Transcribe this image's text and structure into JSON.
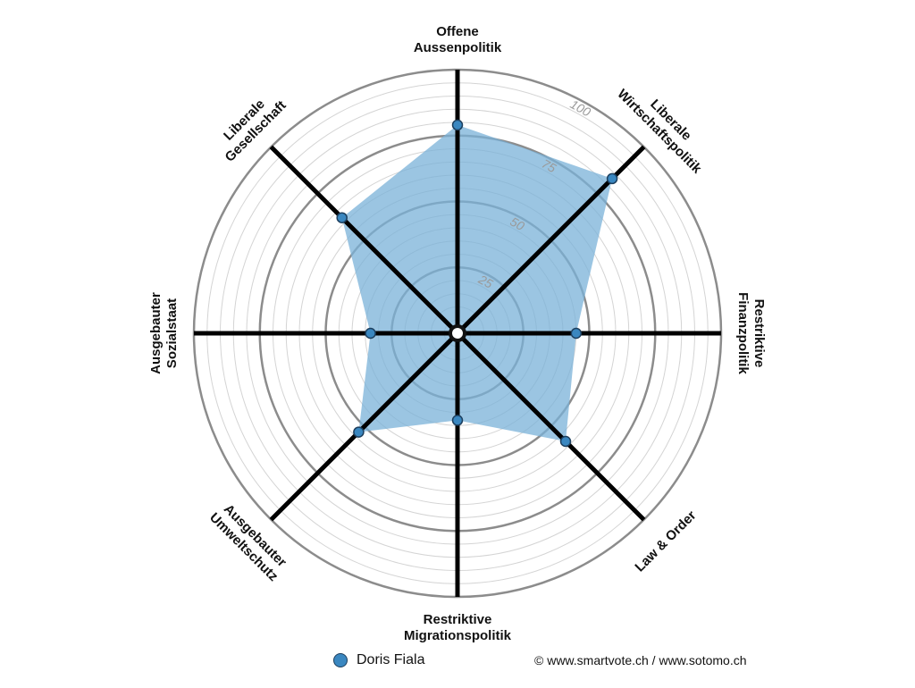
{
  "chart_data": {
    "type": "radar",
    "axes": [
      {
        "name": "Offene Aussenpolitik",
        "lines": [
          "Offene",
          "Aussenpolitik"
        ]
      },
      {
        "name": "Liberale Wirtschaftspolitik",
        "lines": [
          "Liberale",
          "Wirtschaftspolitik"
        ]
      },
      {
        "name": "Restriktive Finanzpolitik",
        "lines": [
          "Restriktive",
          "Finanzpolitik"
        ]
      },
      {
        "name": "Law & Order",
        "lines": [
          "Law & Order"
        ]
      },
      {
        "name": "Restriktive Migrationspolitik",
        "lines": [
          "Restriktive",
          "Migrationspolitik"
        ]
      },
      {
        "name": "Ausgebauter Umweltschutz",
        "lines": [
          "Ausgebauter",
          "Umweltschutz"
        ]
      },
      {
        "name": "Ausgebauter Sozialstaat",
        "lines": [
          "Ausgebauter",
          "Sozialstaat"
        ]
      },
      {
        "name": "Liberale Gesellschaft",
        "lines": [
          "Liberale",
          "Gesellschaft"
        ]
      }
    ],
    "range": [
      0,
      100
    ],
    "ticks": [
      25,
      50,
      75,
      100
    ],
    "series": [
      {
        "name": "Doris Fiala",
        "values": [
          79,
          83,
          45,
          58,
          33,
          53,
          33,
          62
        ],
        "color": "#3a87c0",
        "fill": "#7ab1d8"
      }
    ]
  },
  "legend": {
    "label": "Doris Fiala"
  },
  "copyright": "© www.smartvote.ch / www.sotomo.ch"
}
